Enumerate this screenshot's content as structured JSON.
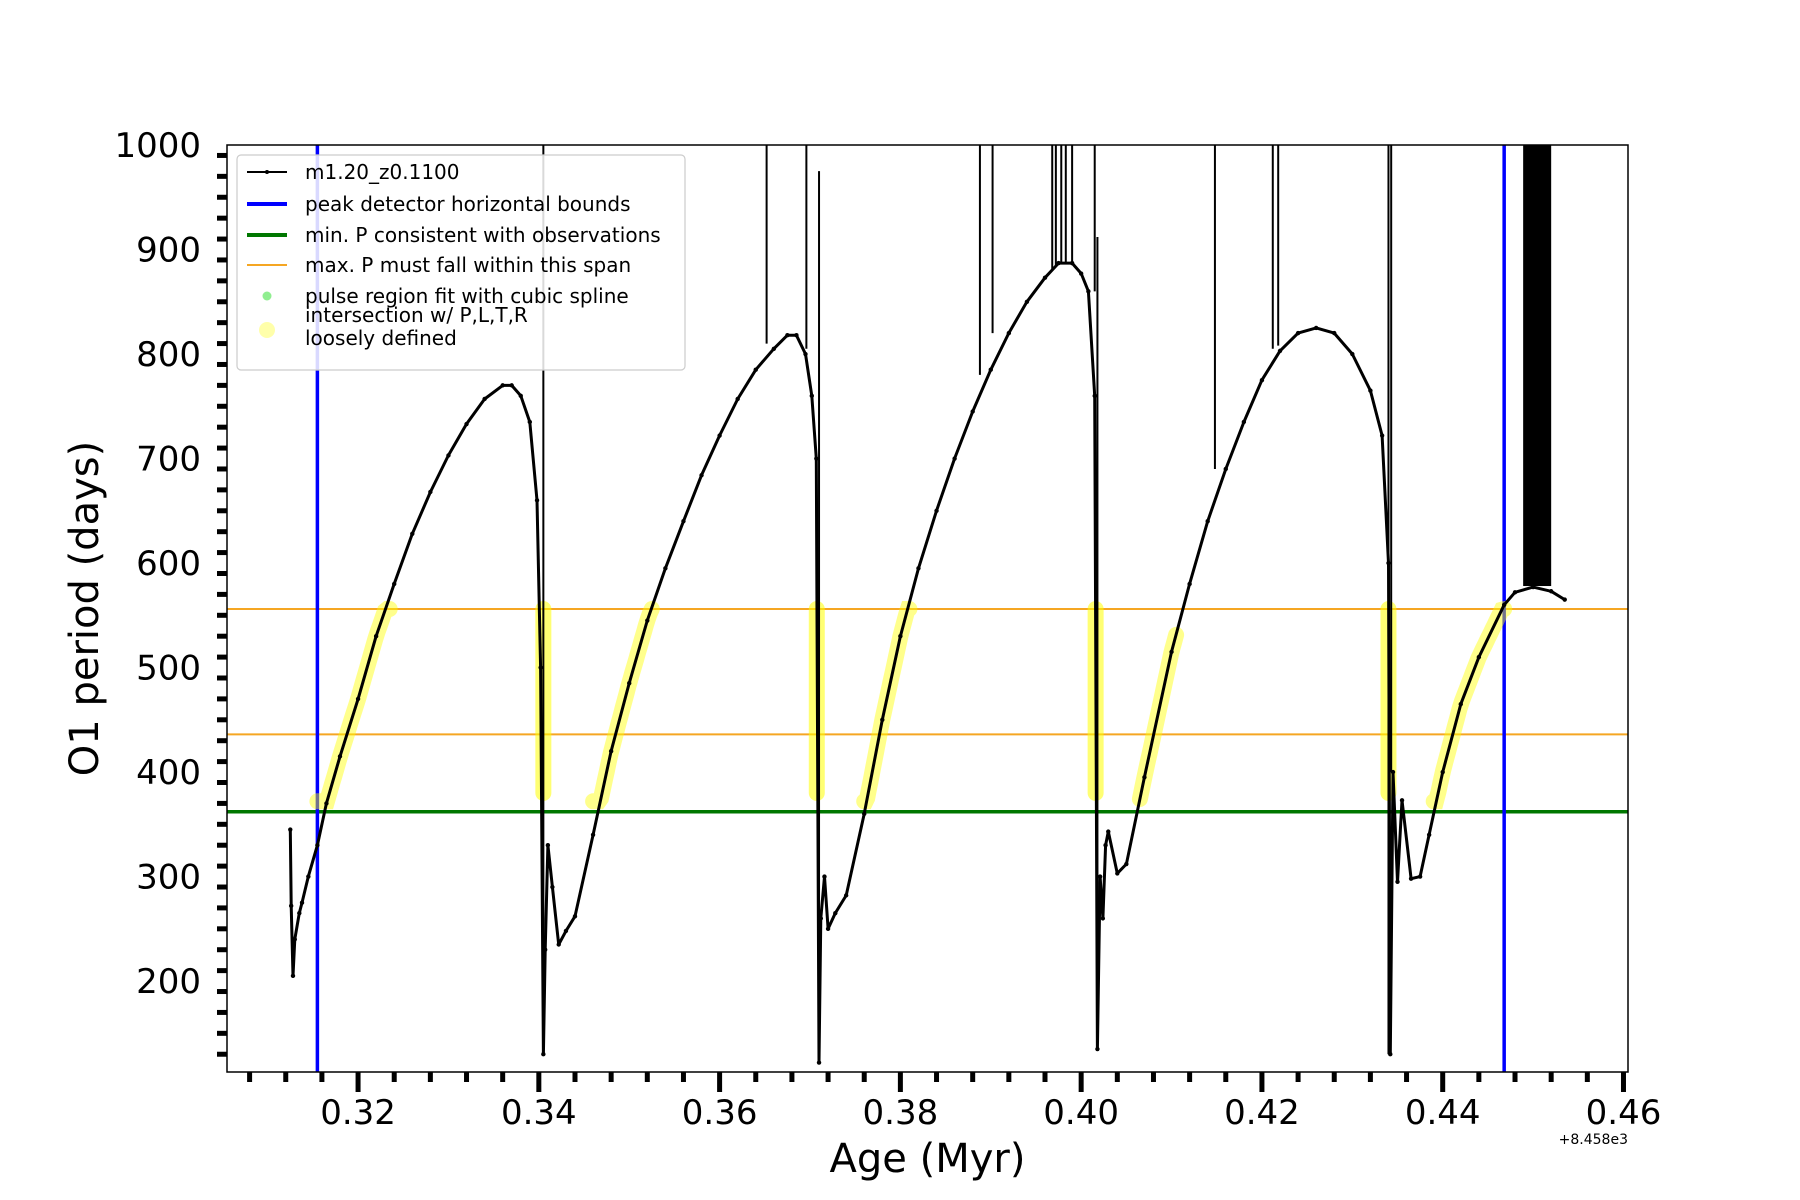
{
  "chart_data": {
    "type": "line",
    "xlabel": "Age (Myr)",
    "ylabel": "O1 period (days)",
    "x_offset_label": "+8.458e3",
    "xlim": [
      0.3055,
      0.4605
    ],
    "ylim": [
      113,
      1000
    ],
    "x_ticks": [
      0.32,
      0.34,
      0.36,
      0.38,
      0.4,
      0.42,
      0.44,
      0.46
    ],
    "x_tick_labels": [
      "0.32",
      "0.34",
      "0.36",
      "0.38",
      "0.40",
      "0.42",
      "0.44",
      "0.46"
    ],
    "y_ticks": [
      200,
      300,
      400,
      500,
      600,
      700,
      800,
      900,
      1000
    ],
    "y_tick_labels": [
      "200",
      "300",
      "400",
      "500",
      "600",
      "700",
      "800",
      "900",
      "1000"
    ],
    "legend_placement": "top-left",
    "legend": [
      {
        "label": "m1.20_z0.1100",
        "kind": "line-marker",
        "color": "#000000"
      },
      {
        "label": "peak detector horizontal bounds",
        "kind": "line",
        "color": "#0000ff"
      },
      {
        "label": "min. P consistent with observations",
        "kind": "line",
        "color": "#007700"
      },
      {
        "label": "max. P must fall within this span",
        "kind": "line",
        "color": "#f5a623"
      },
      {
        "label": "pulse region fit with cubic spline",
        "kind": "dot",
        "color": "#90ee90"
      },
      {
        "label": "intersection w/ P,L,T,R\nloosely defined",
        "kind": "bigdot",
        "color": "#ffffaa"
      }
    ],
    "vertical_lines": {
      "color": "#0000ff",
      "x": [
        0.3155,
        0.4468
      ]
    },
    "horizontal_lines": [
      {
        "y": 362,
        "color": "#007700"
      },
      {
        "y": 556,
        "color": "#f5a623"
      },
      {
        "y": 436,
        "color": "#f5a623"
      }
    ],
    "series": [
      {
        "name": "m1.20_z0.1100",
        "color": "#000000",
        "points": [
          [
            0.3125,
            345
          ],
          [
            0.3126,
            272
          ],
          [
            0.3128,
            205
          ],
          [
            0.313,
            240
          ],
          [
            0.3135,
            265
          ],
          [
            0.3138,
            275
          ],
          [
            0.3145,
            300
          ],
          [
            0.3155,
            330
          ],
          [
            0.3165,
            370
          ],
          [
            0.318,
            415
          ],
          [
            0.32,
            470
          ],
          [
            0.322,
            530
          ],
          [
            0.324,
            580
          ],
          [
            0.326,
            628
          ],
          [
            0.328,
            668
          ],
          [
            0.33,
            703
          ],
          [
            0.332,
            733
          ],
          [
            0.334,
            757
          ],
          [
            0.336,
            770
          ],
          [
            0.337,
            770
          ],
          [
            0.338,
            760
          ],
          [
            0.339,
            735
          ],
          [
            0.3398,
            660
          ],
          [
            0.3402,
            500
          ],
          [
            0.3405,
            130
          ],
          [
            0.3407,
            230
          ],
          [
            0.341,
            330
          ],
          [
            0.3415,
            290
          ],
          [
            0.3422,
            235
          ],
          [
            0.343,
            248
          ],
          [
            0.344,
            262
          ],
          [
            0.346,
            340
          ],
          [
            0.348,
            420
          ],
          [
            0.35,
            485
          ],
          [
            0.352,
            545
          ],
          [
            0.354,
            595
          ],
          [
            0.356,
            640
          ],
          [
            0.358,
            684
          ],
          [
            0.36,
            722
          ],
          [
            0.362,
            757
          ],
          [
            0.364,
            785
          ],
          [
            0.366,
            805
          ],
          [
            0.3675,
            818
          ],
          [
            0.3685,
            818
          ],
          [
            0.3695,
            800
          ],
          [
            0.3702,
            760
          ],
          [
            0.3707,
            700
          ],
          [
            0.371,
            122
          ],
          [
            0.3712,
            260
          ],
          [
            0.3716,
            300
          ],
          [
            0.372,
            250
          ],
          [
            0.3728,
            265
          ],
          [
            0.374,
            282
          ],
          [
            0.376,
            360
          ],
          [
            0.378,
            450
          ],
          [
            0.38,
            530
          ],
          [
            0.382,
            595
          ],
          [
            0.384,
            650
          ],
          [
            0.386,
            700
          ],
          [
            0.388,
            745
          ],
          [
            0.39,
            785
          ],
          [
            0.392,
            820
          ],
          [
            0.394,
            850
          ],
          [
            0.396,
            873
          ],
          [
            0.3975,
            887
          ],
          [
            0.399,
            887
          ],
          [
            0.4,
            877
          ],
          [
            0.4008,
            860
          ],
          [
            0.4015,
            760
          ],
          [
            0.4018,
            135
          ],
          [
            0.4021,
            300
          ],
          [
            0.4024,
            260
          ],
          [
            0.4027,
            330
          ],
          [
            0.403,
            343
          ],
          [
            0.404,
            303
          ],
          [
            0.405,
            312
          ],
          [
            0.407,
            395
          ],
          [
            0.41,
            515
          ],
          [
            0.412,
            580
          ],
          [
            0.414,
            640
          ],
          [
            0.416,
            690
          ],
          [
            0.418,
            735
          ],
          [
            0.42,
            775
          ],
          [
            0.422,
            803
          ],
          [
            0.424,
            820
          ],
          [
            0.426,
            825
          ],
          [
            0.428,
            820
          ],
          [
            0.43,
            800
          ],
          [
            0.432,
            765
          ],
          [
            0.4333,
            722
          ],
          [
            0.434,
            600
          ],
          [
            0.4342,
            130
          ],
          [
            0.4345,
            400
          ],
          [
            0.435,
            295
          ],
          [
            0.4355,
            373
          ],
          [
            0.4365,
            298
          ],
          [
            0.4375,
            300
          ],
          [
            0.4385,
            340
          ],
          [
            0.44,
            400
          ],
          [
            0.442,
            465
          ],
          [
            0.444,
            510
          ],
          [
            0.4468,
            560
          ],
          [
            0.448,
            572
          ],
          [
            0.45,
            577
          ],
          [
            0.452,
            573
          ],
          [
            0.4535,
            565
          ]
        ]
      }
    ],
    "vertical_spikes": [
      {
        "x": 0.3405,
        "y0": 130,
        "y1": 1000
      },
      {
        "x": 0.3652,
        "y0": 810,
        "y1": 1000
      },
      {
        "x": 0.3696,
        "y0": 805,
        "y1": 1000
      },
      {
        "x": 0.371,
        "y0": 122,
        "y1": 975
      },
      {
        "x": 0.3888,
        "y0": 780,
        "y1": 1000
      },
      {
        "x": 0.3902,
        "y0": 820,
        "y1": 1000
      },
      {
        "x": 0.3968,
        "y0": 880,
        "y1": 1000
      },
      {
        "x": 0.3972,
        "y0": 885,
        "y1": 1000
      },
      {
        "x": 0.3978,
        "y0": 887,
        "y1": 1000
      },
      {
        "x": 0.3983,
        "y0": 887,
        "y1": 1000
      },
      {
        "x": 0.399,
        "y0": 885,
        "y1": 1000
      },
      {
        "x": 0.4015,
        "y0": 860,
        "y1": 1000
      },
      {
        "x": 0.4018,
        "y0": 135,
        "y1": 912
      },
      {
        "x": 0.4148,
        "y0": 690,
        "y1": 1000
      },
      {
        "x": 0.4212,
        "y0": 805,
        "y1": 1000
      },
      {
        "x": 0.4218,
        "y0": 808,
        "y1": 1000
      },
      {
        "x": 0.434,
        "y0": 130,
        "y1": 1000
      },
      {
        "x": 0.4343,
        "y0": 400,
        "y1": 1000
      }
    ],
    "spike_band": {
      "x0": 0.4489,
      "x1": 0.452,
      "y0": 578,
      "y1": 1000
    },
    "highlight_segments": [
      {
        "x0": 0.3155,
        "x1": 0.3235
      },
      {
        "x0": 0.34,
        "x1": 0.341
      },
      {
        "x0": 0.346,
        "x1": 0.3525
      },
      {
        "x0": 0.3703,
        "x1": 0.3712
      },
      {
        "x0": 0.376,
        "x1": 0.381
      },
      {
        "x0": 0.4012,
        "x1": 0.402
      },
      {
        "x0": 0.4065,
        "x1": 0.4105
      },
      {
        "x0": 0.4335,
        "x1": 0.4345
      },
      {
        "x0": 0.439,
        "x1": 0.4468
      }
    ],
    "highlight_color": "#ffff00"
  }
}
